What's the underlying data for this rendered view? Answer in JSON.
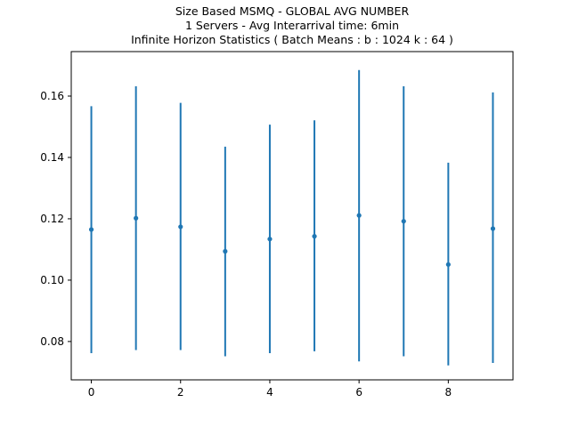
{
  "chart_data": {
    "type": "scatter",
    "error_bars": true,
    "title_lines": [
      "Size Based MSMQ - GLOBAL AVG NUMBER",
      "1 Servers -  Avg Interarrival time: 6min",
      " Infinite Horizon Statistics ( Batch Means : b : 1024  k : 64 )"
    ],
    "xlabel": "",
    "ylabel": "",
    "xlim": [
      -0.45,
      9.45
    ],
    "ylim": [
      0.0675,
      0.1745
    ],
    "x_ticks": [
      0,
      2,
      4,
      6,
      8
    ],
    "x_tick_labels": [
      "0",
      "2",
      "4",
      "6",
      "8"
    ],
    "y_ticks": [
      0.08,
      0.1,
      0.12,
      0.14,
      0.16
    ],
    "y_tick_labels": [
      "0.08",
      "0.10",
      "0.12",
      "0.14",
      "0.16"
    ],
    "grid": false,
    "color": "#1f77b4",
    "series": [
      {
        "x": [
          0,
          1,
          2,
          3,
          4,
          5,
          6,
          7,
          8,
          9
        ],
        "y": [
          0.1165,
          0.1202,
          0.1174,
          0.1094,
          0.1134,
          0.1143,
          0.1211,
          0.1192,
          0.1051,
          0.1168
        ],
        "lower": [
          0.0762,
          0.0772,
          0.0772,
          0.0752,
          0.0762,
          0.0768,
          0.0735,
          0.0752,
          0.0722,
          0.073
        ],
        "upper": [
          0.1567,
          0.1632,
          0.1578,
          0.1435,
          0.1507,
          0.1521,
          0.1685,
          0.1632,
          0.1383,
          0.1612
        ]
      }
    ]
  }
}
